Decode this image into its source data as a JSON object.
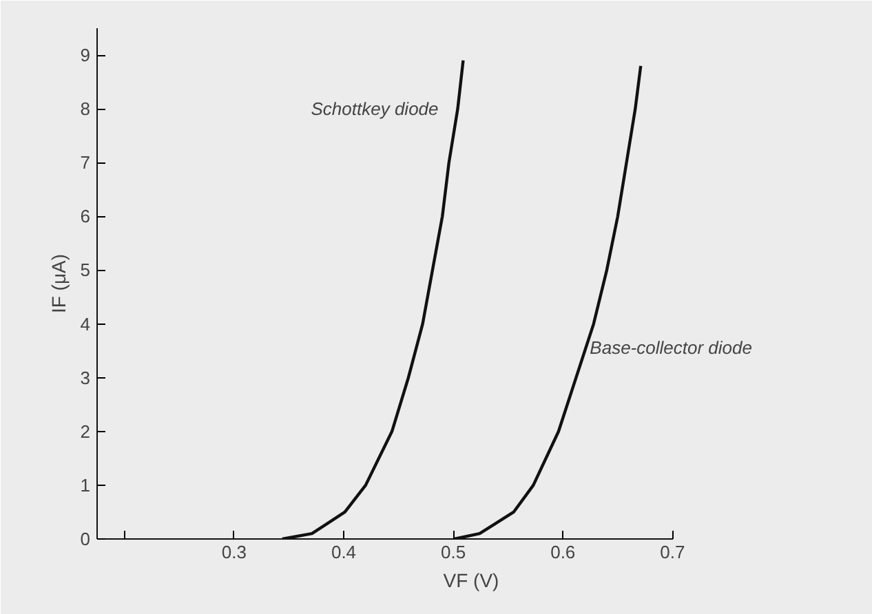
{
  "chart_data": {
    "type": "line",
    "xlabel": "VF (V)",
    "ylabel": "IF (μA)",
    "series": [
      {
        "name": "Schottkey diode",
        "color": "#111111",
        "x": [
          0.344,
          0.371,
          0.401,
          0.42,
          0.444,
          0.459,
          0.472,
          0.481,
          0.49,
          0.496,
          0.504,
          0.509
        ],
        "values": [
          0,
          0.1,
          0.5,
          1,
          2,
          3,
          4,
          5,
          6,
          7,
          8,
          8.9
        ]
      },
      {
        "name": "Base-collector diode",
        "color": "#111111",
        "x": [
          0.501,
          0.524,
          0.555,
          0.573,
          0.596,
          0.612,
          0.628,
          0.64,
          0.65,
          0.658,
          0.666,
          0.671
        ],
        "values": [
          0,
          0.1,
          0.5,
          1,
          2,
          3,
          4,
          5,
          6,
          7,
          8,
          8.8
        ]
      }
    ],
    "xlim": [
      0.175,
      0.7
    ],
    "ylim": [
      0,
      9.5
    ],
    "xticks": [
      {
        "value": 0.2,
        "label": null
      },
      0.3,
      0.4,
      0.5,
      0.6,
      0.7
    ],
    "yticks": [
      0,
      1,
      2,
      3,
      4,
      5,
      6,
      7,
      8,
      9
    ],
    "grid": false,
    "marker": "none",
    "line_style": "solid"
  }
}
